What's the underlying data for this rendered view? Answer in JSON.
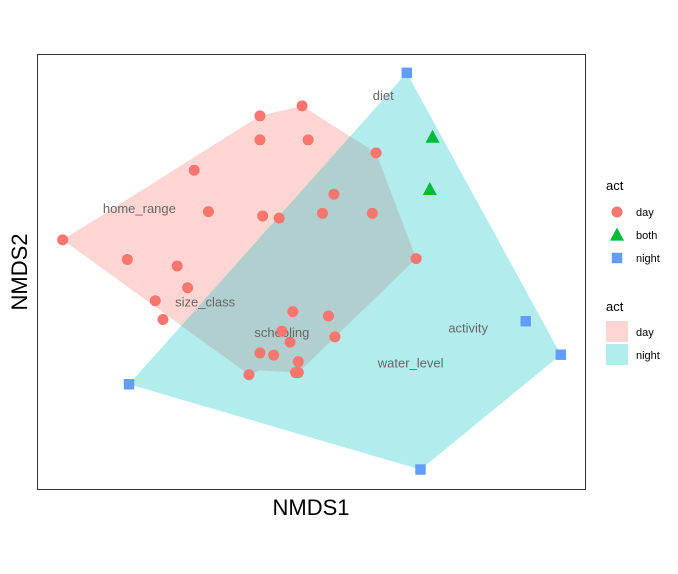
{
  "chart_data": {
    "type": "scatter",
    "xlabel": "NMDS1",
    "ylabel": "NMDS2",
    "xlim": [
      0,
      100
    ],
    "ylim": [
      0,
      100
    ],
    "grid": false,
    "axis_ticks": false,
    "legend_position": "right",
    "series": [
      {
        "name": "day",
        "shape": "circle",
        "color": "#F8766D",
        "points": [
          [
            4.5,
            57.5
          ],
          [
            16.3,
            53.0
          ],
          [
            21.4,
            43.5
          ],
          [
            22.8,
            39.2
          ],
          [
            25.4,
            51.5
          ],
          [
            27.3,
            46.5
          ],
          [
            28.5,
            73.5
          ],
          [
            31.1,
            64.0
          ],
          [
            40.5,
            86.0
          ],
          [
            40.5,
            80.5
          ],
          [
            41.0,
            63.0
          ],
          [
            44.0,
            62.5
          ],
          [
            38.5,
            26.5
          ],
          [
            40.5,
            31.5
          ],
          [
            43.0,
            31.0
          ],
          [
            44.5,
            36.5
          ],
          [
            46.0,
            34.0
          ],
          [
            47.5,
            29.5
          ],
          [
            47.0,
            27.0
          ],
          [
            47.5,
            27.0
          ],
          [
            46.5,
            41.0
          ],
          [
            48.2,
            88.3
          ],
          [
            49.3,
            80.5
          ],
          [
            51.9,
            63.6
          ],
          [
            54.0,
            68.0
          ],
          [
            53.0,
            40.0
          ],
          [
            54.2,
            35.2
          ],
          [
            61.0,
            63.6
          ],
          [
            61.7,
            77.5
          ],
          [
            69.0,
            53.2
          ]
        ]
      },
      {
        "name": "both",
        "shape": "triangle",
        "color": "#00BA38",
        "points": [
          [
            72.0,
            81.1
          ],
          [
            71.5,
            69.1
          ]
        ]
      },
      {
        "name": "night",
        "shape": "square",
        "color": "#619CFF",
        "points": [
          [
            67.3,
            95.9
          ],
          [
            16.6,
            24.3
          ],
          [
            69.8,
            4.7
          ],
          [
            89.0,
            38.8
          ],
          [
            95.4,
            31.1
          ]
        ]
      }
    ],
    "hulls": [
      {
        "name": "day",
        "fill": "#F8766D",
        "opacity": 0.3,
        "points": [
          [
            4.5,
            57.5
          ],
          [
            38.5,
            26.5
          ],
          [
            40.5,
            27.5
          ],
          [
            47.5,
            27.0
          ],
          [
            69.0,
            53.2
          ],
          [
            61.7,
            77.5
          ],
          [
            48.2,
            88.3
          ],
          [
            40.5,
            86.0
          ]
        ]
      },
      {
        "name": "night",
        "fill": "#00BFC4",
        "opacity": 0.3,
        "points": [
          [
            67.3,
            95.9
          ],
          [
            95.4,
            31.1
          ],
          [
            69.8,
            4.7
          ],
          [
            16.6,
            24.3
          ]
        ]
      }
    ],
    "variable_labels": [
      {
        "text": "diet",
        "x": 63.0,
        "y": 90.5
      },
      {
        "text": "home_range",
        "x": 18.5,
        "y": 64.5
      },
      {
        "text": "size_class",
        "x": 30.5,
        "y": 43.0
      },
      {
        "text": "schooling",
        "x": 44.5,
        "y": 36.0
      },
      {
        "text": "activity",
        "x": 78.5,
        "y": 37.0
      },
      {
        "text": "water_level",
        "x": 68.0,
        "y": 29.0
      }
    ],
    "legend": {
      "points": {
        "title": "act",
        "items": [
          {
            "label": "day",
            "shape": "circle",
            "color": "#F8766D"
          },
          {
            "label": "both",
            "shape": "triangle",
            "color": "#00BA38"
          },
          {
            "label": "night",
            "shape": "square",
            "color": "#619CFF"
          }
        ]
      },
      "fills": {
        "title": "act",
        "items": [
          {
            "label": "day",
            "color": "#F8766D"
          },
          {
            "label": "night",
            "color": "#00BFC4"
          }
        ]
      }
    }
  }
}
